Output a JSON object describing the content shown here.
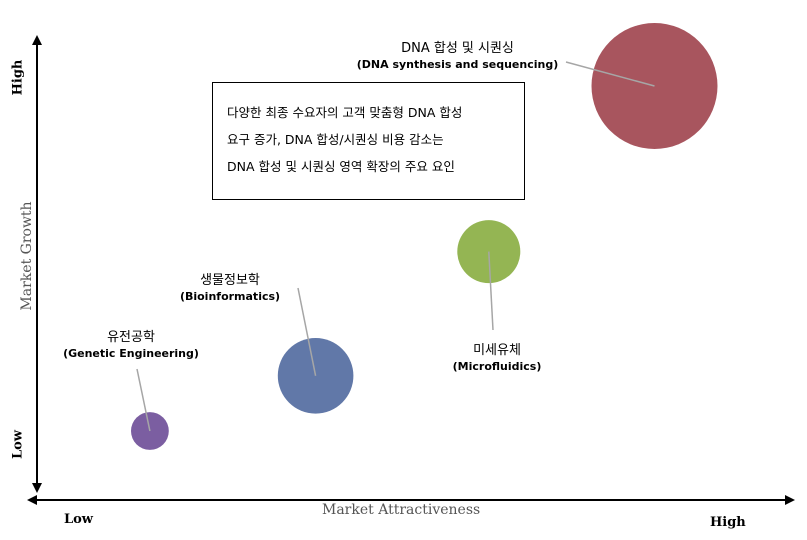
{
  "chart_data": {
    "type": "bubble",
    "xlabel": "Market Attractiveness",
    "ylabel": "Market Growth",
    "x_low_label": "Low",
    "x_high_label": "High",
    "y_low_label": "Low",
    "y_high_label": "High",
    "bubbles": [
      {
        "name": "유전공학",
        "name_en": "(Genetic Engineering)",
        "x": 0.15,
        "y": 0.15,
        "size": 0.3,
        "color": "#7b5ea1"
      },
      {
        "name": "생물정보학",
        "name_en": "(Bioinformatics)",
        "x": 0.37,
        "y": 0.27,
        "size": 0.6,
        "color": "#6178a8"
      },
      {
        "name": "미세유체",
        "name_en": "(Microfluidics)",
        "x": 0.6,
        "y": 0.54,
        "size": 0.5,
        "color": "#94b553"
      },
      {
        "name": "DNA 합성 및 시퀀싱",
        "name_en": "(DNA synthesis and sequencing)",
        "x": 0.82,
        "y": 0.9,
        "size": 1.0,
        "color": "#a8555e"
      }
    ],
    "annotation": [
      "다양한 최종 수요자의 고객 맞춤형 DNA 합성",
      "요구 증가, DNA 합성/시퀀싱 비용 감소는",
      "DNA 합성 및 시퀀싱 영역 확장의 주요 요인"
    ]
  }
}
